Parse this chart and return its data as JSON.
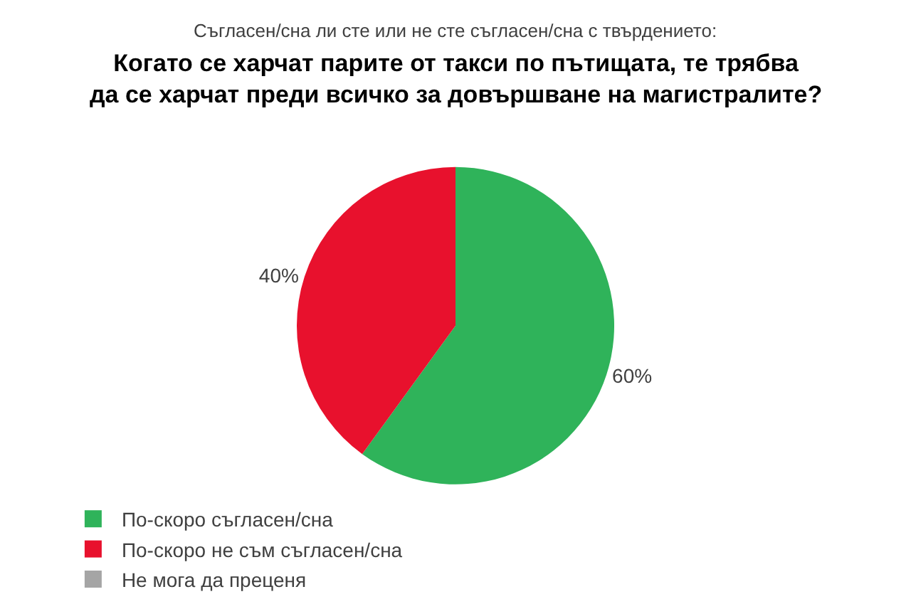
{
  "chart_data": {
    "type": "pie",
    "subtitle": "Съгласен/сна ли сте или не сте съгласен/сна с твърдението:",
    "title": "Когато се харчат парите от такси по пътищата, те трябва да се харчат преди всичко за довършване на магистралите?",
    "categories": [
      "По-скоро съгласен/сна",
      "По-скоро не съм съгласен/сна",
      "Не мога да преценя"
    ],
    "values": [
      60,
      40,
      0
    ],
    "colors": [
      "#2fb35a",
      "#e8112d",
      "#a5a5a5"
    ],
    "value_labels": [
      "60%",
      "40%",
      null
    ],
    "legend": "bottom"
  }
}
